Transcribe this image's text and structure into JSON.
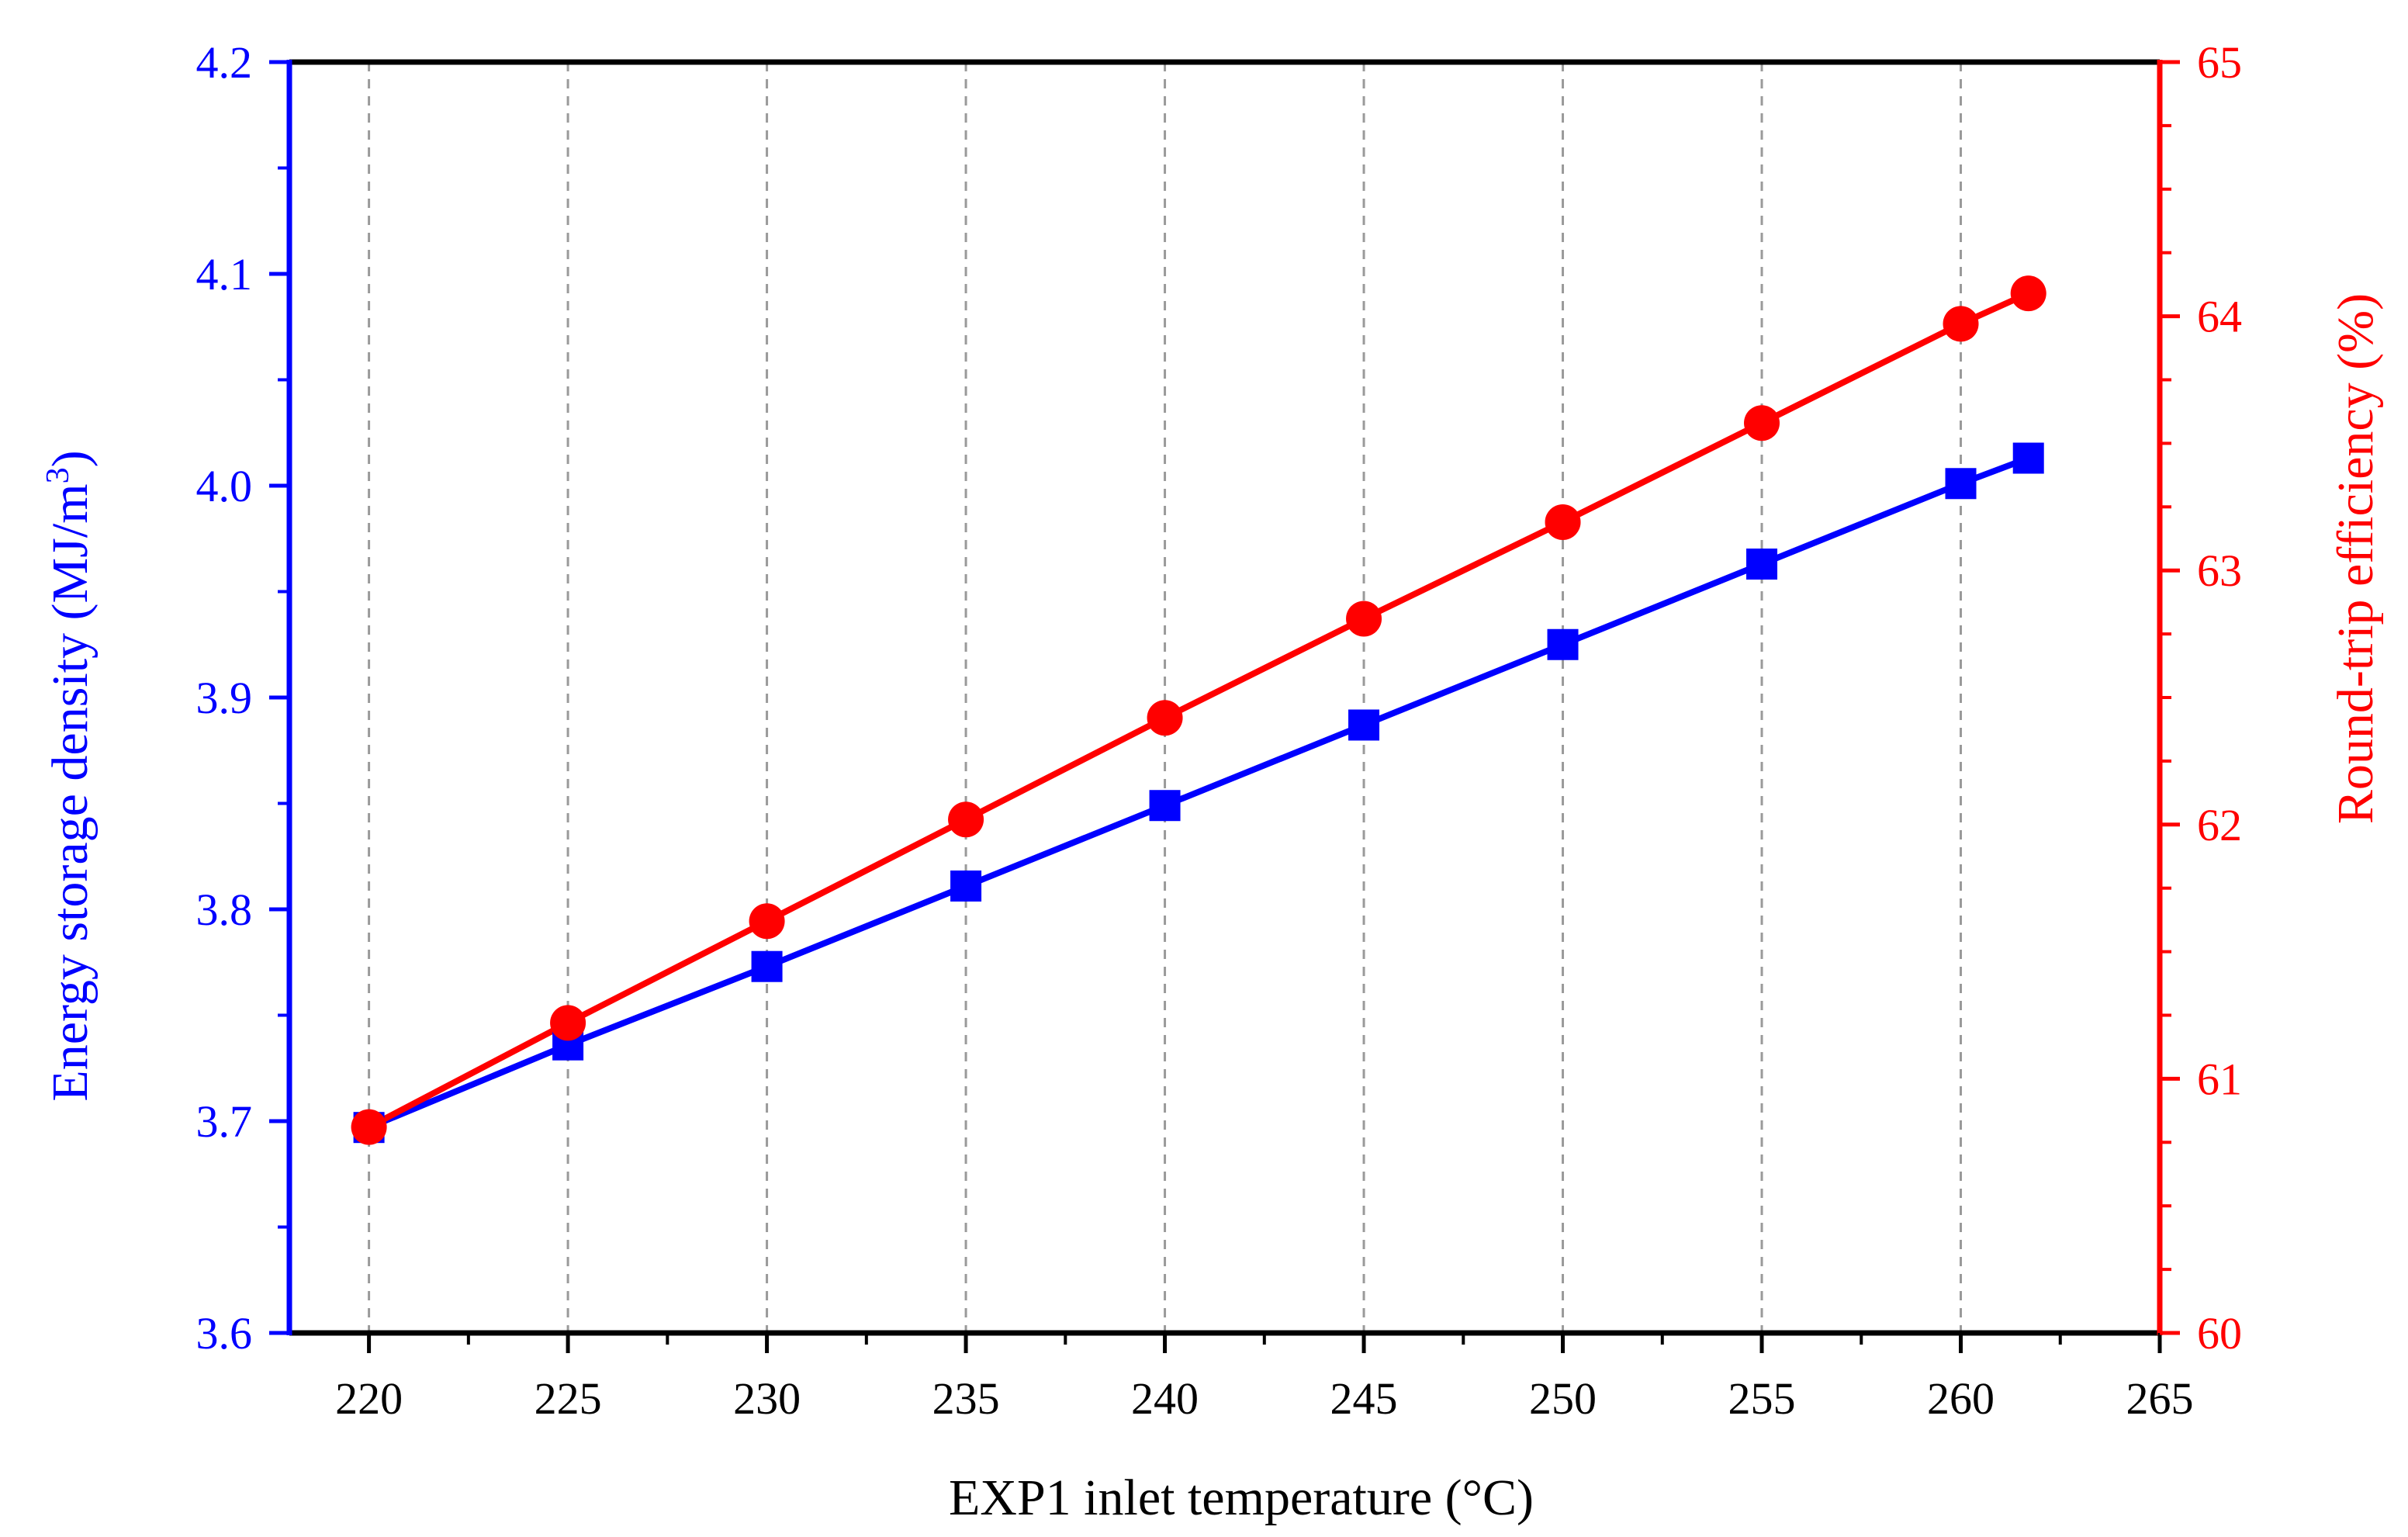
{
  "chart_data": {
    "type": "line",
    "xlabel": "EXP1 inlet temperature (°C)",
    "ylabel_left": "Energy storage density (MJ/m",
    "ylabel_left_sup": "3",
    "ylabel_left_close": ")",
    "ylabel_right": "Round-trip efficiency (%)",
    "xlim": [
      218,
      265
    ],
    "ylim_left": [
      3.6,
      4.2
    ],
    "ylim_right": [
      60,
      65
    ],
    "x_ticks": [
      220,
      225,
      230,
      235,
      240,
      245,
      250,
      255,
      260,
      265
    ],
    "x_tick_labels": [
      "220",
      "225",
      "230",
      "235",
      "240",
      "245",
      "250",
      "255",
      "260",
      "265"
    ],
    "y_left_ticks": [
      3.6,
      3.7,
      3.8,
      3.9,
      4.0,
      4.1,
      4.2
    ],
    "y_left_tick_labels": [
      "3.6",
      "3.7",
      "3.8",
      "3.9",
      "4.0",
      "4.1",
      "4.2"
    ],
    "y_right_ticks": [
      60,
      61,
      62,
      63,
      64,
      65
    ],
    "y_right_tick_labels": [
      "60",
      "61",
      "62",
      "63",
      "64",
      "65"
    ],
    "grid": "vertical dashed",
    "x": [
      220,
      225,
      230,
      235,
      240,
      245,
      250,
      255,
      260,
      261.7
    ],
    "series": [
      {
        "name": "Energy storage density",
        "axis": "left",
        "marker": "square",
        "color": "#0000ff",
        "values": [
          3.697,
          3.736,
          3.773,
          3.811,
          3.849,
          3.887,
          3.925,
          3.963,
          4.001,
          4.013
        ]
      },
      {
        "name": "Round-trip efficiency",
        "axis": "right",
        "marker": "circle",
        "color": "#ff0000",
        "values": [
          60.81,
          61.22,
          61.62,
          62.02,
          62.42,
          62.81,
          63.19,
          63.58,
          63.97,
          64.09
        ]
      }
    ]
  }
}
